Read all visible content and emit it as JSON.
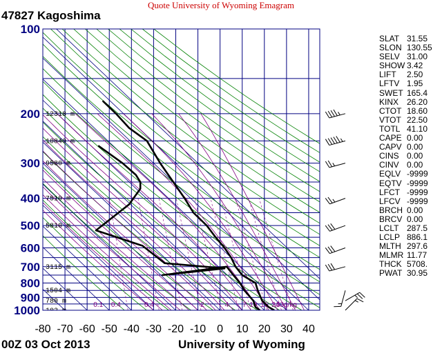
{
  "header": {
    "banner": "Quote University of Wyoming Emagram",
    "station": "47827  Kagoshima",
    "time": "00Z 03 Oct 2013",
    "source": "University of Wyoming"
  },
  "colors": {
    "grid": "#000080",
    "dry_adiabat": "#008000",
    "moist_adiabat": "#800080",
    "banner": "#cc0000",
    "profile": "#000000"
  },
  "chart_data": {
    "type": "line",
    "title": "Quote University of Wyoming Emagram",
    "xlabel": "",
    "ylabel": "",
    "x_scale": "linear",
    "y_scale": "log",
    "xlim": [
      -80,
      45
    ],
    "ylim": [
      1000,
      100
    ],
    "x_ticks": [
      "-80",
      "-70",
      "-60",
      "-50",
      "-40",
      "-30",
      "-20",
      "-10",
      "0",
      "10",
      "20",
      "30",
      "40"
    ],
    "y_ticks": [
      "100",
      "200",
      "300",
      "400",
      "500",
      "600",
      "700",
      "800",
      "900",
      "1000"
    ],
    "height_labels": [
      {
        "p": 1000,
        "label": "102 m"
      },
      {
        "p": 925,
        "label": "780 m"
      },
      {
        "p": 850,
        "label": "1504 m"
      },
      {
        "p": 700,
        "label": "3115 m"
      },
      {
        "p": 500,
        "label": "5810 m"
      },
      {
        "p": 400,
        "label": "7510 m"
      },
      {
        "p": 300,
        "label": "9580 m"
      },
      {
        "p": 250,
        "label": "10840 m"
      },
      {
        "p": 200,
        "label": "12318 m"
      }
    ],
    "mixing_ratio_labels": [
      {
        "t": -55,
        "label": "0.1"
      },
      {
        "t": -47,
        "label": "0.4"
      },
      {
        "t": -32,
        "label": "0.4"
      },
      {
        "t": -8,
        "label": "2"
      },
      {
        "t": 3,
        "label": "4"
      },
      {
        "t": 11,
        "label": "7"
      },
      {
        "t": 15,
        "label": "10"
      },
      {
        "t": 20,
        "label": "16"
      },
      {
        "t": 25,
        "label": "24"
      },
      {
        "t": 30,
        "label": "33g/kg"
      }
    ],
    "series": [
      {
        "name": "",
        "role": "temperature",
        "x": [
          24.5,
          22,
          19,
          17,
          16,
          10,
          7,
          5,
          2,
          -2,
          -6,
          -12,
          -16,
          -27,
          -33,
          -41,
          -47,
          -53
        ],
        "p": [
          1000,
          975,
          925,
          850,
          800,
          750,
          700,
          650,
          600,
          550,
          500,
          450,
          400,
          300,
          250,
          225,
          200,
          180
        ]
      },
      {
        "name": "",
        "role": "dewpoint",
        "x": [
          18,
          16,
          15,
          11,
          9,
          6,
          3,
          -26,
          2,
          -25,
          -35,
          -56,
          -41,
          -36,
          -36,
          -38,
          -44,
          -55
        ],
        "p": [
          1000,
          975,
          925,
          850,
          800,
          750,
          700,
          750,
          710,
          680,
          590,
          520,
          420,
          370,
          350,
          330,
          300,
          260
        ]
      }
    ],
    "wind_barbs": [
      {
        "p": 200,
        "dir": 255,
        "kt": 45
      },
      {
        "p": 250,
        "dir": 255,
        "kt": 55
      },
      {
        "p": 300,
        "dir": 255,
        "kt": 25
      },
      {
        "p": 400,
        "dir": 250,
        "kt": 25
      },
      {
        "p": 500,
        "dir": 250,
        "kt": 30
      },
      {
        "p": 600,
        "dir": 250,
        "kt": 30
      },
      {
        "p": 700,
        "dir": 255,
        "kt": 30
      },
      {
        "p": 850,
        "dir": 195,
        "kt": 15
      },
      {
        "p": 925,
        "dir": 60,
        "kt": 25
      },
      {
        "p": 1000,
        "dir": 45,
        "kt": 15
      }
    ]
  },
  "indices": [
    {
      "key": "SLAT",
      "value": "31.55"
    },
    {
      "key": "SLON",
      "value": "130.55"
    },
    {
      "key": "SELV",
      "value": "31.00"
    },
    {
      "key": "SHOW",
      "value": "3.42"
    },
    {
      "key": "LIFT",
      "value": "2.50"
    },
    {
      "key": "LFTV",
      "value": "1.95"
    },
    {
      "key": "SWET",
      "value": "165.4"
    },
    {
      "key": "KINX",
      "value": "26.20"
    },
    {
      "key": "CTOT",
      "value": "18.60"
    },
    {
      "key": "VTOT",
      "value": "22.50"
    },
    {
      "key": "TOTL",
      "value": "41.10"
    },
    {
      "key": "CAPE",
      "value": "0.00"
    },
    {
      "key": "CAPV",
      "value": "0.00"
    },
    {
      "key": "CINS",
      "value": "0.00"
    },
    {
      "key": "CINV",
      "value": "0.00"
    },
    {
      "key": "EQLV",
      "value": "-9999"
    },
    {
      "key": "EQTV",
      "value": "-9999"
    },
    {
      "key": "LFCT",
      "value": "-9999"
    },
    {
      "key": "LFCV",
      "value": "-9999"
    },
    {
      "key": "BRCH",
      "value": "0.00"
    },
    {
      "key": "BRCV",
      "value": "0.00"
    },
    {
      "key": "LCLT",
      "value": "287.5"
    },
    {
      "key": "LCLP",
      "value": "886.1"
    },
    {
      "key": "MLTH",
      "value": "297.6"
    },
    {
      "key": "MLMR",
      "value": "11.77"
    },
    {
      "key": "THCK",
      "value": "5708."
    },
    {
      "key": "PWAT",
      "value": "30.95"
    }
  ]
}
